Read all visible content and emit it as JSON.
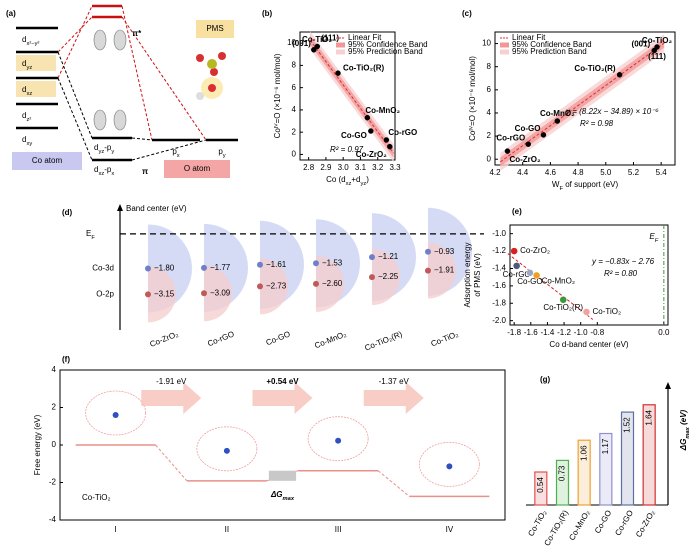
{
  "diagram": {
    "label": "(a)",
    "co_orbitals": [
      [
        "d",
        {
          "sub": "x²−y²"
        }
      ],
      [
        "d",
        {
          "sub": "yz"
        }
      ],
      [
        "d",
        {
          "sub": "xz"
        }
      ],
      [
        "d",
        {
          "sub": "z²"
        }
      ],
      [
        "d",
        {
          "sub": "xy"
        }
      ]
    ],
    "antibonding": "π*",
    "bonding": "π",
    "bonding_orbitals": [
      [
        "d",
        {
          "sub": "yz"
        },
        "-p",
        {
          "sub": "y"
        }
      ],
      [
        "d",
        {
          "sub": "xz"
        },
        "-p",
        {
          "sub": "x"
        }
      ]
    ],
    "o_orbitals": [
      [
        "p",
        {
          "sub": "x"
        }
      ],
      [
        "p",
        {
          "sub": "y"
        }
      ]
    ],
    "molecule": "PMS",
    "co_atom": "Co atom",
    "o_atom": "O atom"
  },
  "chart_data": [
    {
      "type": "scatter",
      "label": "(b)",
      "x_label": [
        "Co (d",
        {
          "sub": "xz"
        },
        "+d",
        {
          "sub": "yz"
        },
        ")"
      ],
      "y_label": "Coᴵⱽ=O (×10⁻⁶ mol/mol)",
      "x": [
        2.83,
        2.85,
        2.97,
        3.14,
        3.16,
        3.25,
        3.27
      ],
      "values": [
        9.4,
        9.7,
        7.3,
        3.3,
        2.1,
        1.3,
        0.7
      ],
      "point_labels": [
        "(001)",
        "(111)",
        "Co-TiO₂(R)",
        "Co-MnO₂",
        "Co-GO",
        "Co-rGO",
        "Co-ZrO₂"
      ],
      "annotations": [
        "Co-TiO₂",
        "R² = 0.97"
      ],
      "legend": [
        "Linear Fit",
        "95% Confidence Band",
        "95% Prediction Band"
      ],
      "color": "#000000",
      "fit_color": "#e03030",
      "xlim": [
        2.75,
        3.3
      ],
      "xticks": [
        2.8,
        2.9,
        {
          "value": 3,
          "label": "3.0"
        },
        3.1,
        3.2,
        3.3
      ],
      "ylim": [
        -0.5,
        11
      ],
      "yticks": [
        0,
        2,
        4,
        6,
        8,
        10
      ]
    },
    {
      "type": "scatter",
      "label": "(c)",
      "x_label": [
        "W",
        {
          "sub": "F"
        },
        " of support (eV)"
      ],
      "y_label": "Coᴵⱽ=O (×10⁻⁶ mol/mol)",
      "x": [
        5.35,
        5.37,
        5.1,
        4.65,
        4.55,
        4.44,
        4.29
      ],
      "values": [
        9.4,
        9.7,
        7.3,
        3.3,
        2.1,
        1.3,
        0.7
      ],
      "point_labels": [
        "(001)",
        "(111)",
        "Co-TiO₂(R)",
        "Co-MnO₂",
        "Co-GO",
        "Co-rGO",
        "Co-ZrO₂"
      ],
      "annotations": [
        "Co-TiO₂",
        "y = (8.22x − 34.89) × 10⁻⁶",
        "R² = 0.98"
      ],
      "legend": [
        "Linear Fit",
        "95% Confidence Band",
        "95% Prediction Band"
      ],
      "color": "#000000",
      "fit_color": "#e03030",
      "xlim": [
        4.2,
        5.5
      ],
      "xticks": [
        4.2,
        4.4,
        4.6,
        4.8,
        {
          "value": 5,
          "label": "5.0"
        },
        5.2,
        5.4
      ],
      "ylim": [
        -0.5,
        11
      ],
      "yticks": [
        0,
        2,
        4,
        6,
        8,
        10
      ]
    },
    {
      "type": "band",
      "label": "(d)",
      "y_label": "Band center (eV)",
      "ef_label": [
        "E",
        {
          "sub": "F"
        }
      ],
      "categories": [
        "Co-ZrO₂",
        "Co-rGO",
        "Co-GO",
        "Co-MnO₂",
        "Co-TiO₂(R)",
        "Co-TiO₂"
      ],
      "series": [
        {
          "name": "Co-3d",
          "color": "#7080c8",
          "values": [
            -1.8,
            -1.77,
            -1.61,
            -1.53,
            -1.21,
            -0.93
          ],
          "value_labels": [
            "−1.80",
            "−1.77",
            "−1.61",
            "−1.53",
            "−1.21",
            "−0.93"
          ]
        },
        {
          "name": "O-2p",
          "color": "#c05a5a",
          "values": [
            -3.15,
            -3.09,
            -2.73,
            -2.6,
            -2.25,
            -1.91
          ],
          "value_labels": [
            "−3.15",
            "−3.09",
            "−2.73",
            "−2.60",
            "−2.25",
            "−1.91"
          ]
        }
      ],
      "ylim": [
        -5,
        1.5
      ]
    },
    {
      "type": "scatter",
      "label": "(e)",
      "x_label": "Co d-band center (eV)",
      "y_label_lines": [
        "Adsorption energy",
        "of PMS (eV)"
      ],
      "x": [
        -1.8,
        -1.77,
        -1.61,
        -1.53,
        -1.21,
        -0.93
      ],
      "values": [
        -1.2,
        -1.37,
        -1.45,
        -1.48,
        -1.76,
        -1.9
      ],
      "point_labels": [
        "Co-ZrO₂",
        "Co-rGO",
        "Co-GO",
        "Co-MnO₂",
        "Co-TiO₂(R)",
        "Co-TiO₂"
      ],
      "colors": [
        "#d82020",
        "#4a5a7a",
        "#9aa8c8",
        "#f0a020",
        "#3a9a3a",
        "#f4a0a0"
      ],
      "annotations": [
        "y = −0.83x − 2.76",
        "R² = 0.80"
      ],
      "ef_label": [
        "E",
        {
          "sub": "F"
        }
      ],
      "fit_color": "#d82020",
      "ef_color": "#3a9a3a",
      "xlim": [
        -1.85,
        0.05
      ],
      "xticks": [
        -1.8,
        -1.6,
        -1.4,
        -1.2,
        {
          "value": -1,
          "label": "-1.0"
        },
        -0.8,
        {
          "value": 0,
          "label": "0.0"
        }
      ],
      "ylim": [
        -2.05,
        -0.9
      ],
      "yticks": [
        {
          "value": -1,
          "label": "-1.0"
        },
        -1.2,
        -1.4,
        -1.6,
        -1.8,
        {
          "value": -2,
          "label": "-2.0"
        }
      ]
    },
    {
      "type": "energy",
      "label": "(f)",
      "y_label": "Free energy (eV)",
      "categories": [
        "I",
        "II",
        "III",
        "IV"
      ],
      "values": [
        0,
        -1.91,
        -1.37,
        -2.74
      ],
      "step_labels": [
        "-1.91 eV",
        "+0.54 eV",
        "-1.37 eV"
      ],
      "system": "Co-TiO₂",
      "gap_label": [
        "ΔG",
        {
          "sub": "max"
        }
      ],
      "color": "#e8908a",
      "ylim": [
        -4,
        4
      ],
      "yticks": [
        -4,
        -2,
        0,
        2,
        4
      ]
    },
    {
      "type": "bar",
      "label": "(g)",
      "y_label": [
        "ΔG",
        {
          "sub": "max"
        },
        " (eV)"
      ],
      "categories": [
        "Co-TiO₂",
        "Co-TiO₂(R)",
        "Co-MnO₂",
        "Co-GO",
        "Co-rGO",
        "Co-ZrO₂"
      ],
      "values": [
        0.54,
        0.73,
        1.06,
        1.17,
        1.52,
        1.64
      ],
      "colors": [
        "#e05050",
        "#50b050",
        "#f0a030",
        "#9090d0",
        "#6070a0",
        "#d03030"
      ],
      "ylim": [
        0,
        1.8
      ]
    }
  ]
}
